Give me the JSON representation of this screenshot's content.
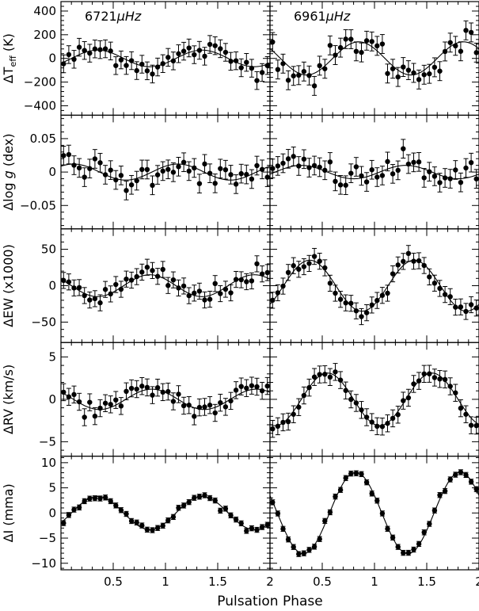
{
  "chart_data": {
    "type": "scatter",
    "xlabel": "Pulsation Phase",
    "columns": [
      {
        "label_num": "6721",
        "label_unit": "μHz"
      },
      {
        "label_num": "6961",
        "label_unit": "μHz"
      }
    ],
    "x_range": [
      0.0,
      2.0
    ],
    "x_ticks": [
      0.5,
      1,
      1.5,
      2
    ],
    "rows": [
      {
        "id": "teff",
        "ylabel_prefix": "ΔT",
        "ylabel_sub": "eff",
        "ylabel_suffix": " (K)",
        "ylim": [
          -480,
          480
        ],
        "yticks": [
          400,
          200,
          0,
          -200,
          -400
        ],
        "ytick_labels": [
          "400",
          "200",
          "0",
          "−200",
          "−400"
        ],
        "amplitude": [
          70,
          140
        ],
        "phase_peak": [
          0.35,
          0.85
        ],
        "error": [
          75,
          80
        ],
        "scatter": [
          45,
          65
        ]
      },
      {
        "id": "logg",
        "ylabel_prefix": "Δlog ",
        "ylabel_italic": "g",
        "ylabel_suffix": " (dex)",
        "ylim": [
          -0.085,
          0.085
        ],
        "yticks": [
          0.05,
          0,
          -0.05
        ],
        "ytick_labels": [
          "0.05",
          "0",
          "−0.05"
        ],
        "amplitude": [
          0.012,
          0.01
        ],
        "phase_peak": [
          0.12,
          0.3
        ],
        "error": [
          0.014,
          0.014
        ],
        "scatter": [
          0.01,
          0.01
        ]
      },
      {
        "id": "ew",
        "ylabel_prefix": "ΔEW (x1000)",
        "ylim": [
          -78,
          78
        ],
        "yticks": [
          50,
          0,
          -50
        ],
        "ytick_labels": [
          "50",
          "0",
          "−50"
        ],
        "amplitude": [
          15,
          35
        ],
        "phase_peak": [
          0.85,
          0.38
        ],
        "error": [
          11,
          11
        ],
        "scatter": [
          7,
          6
        ]
      },
      {
        "id": "rv",
        "ylabel_prefix": "ΔRV (km/s)",
        "ylim": [
          -6.7,
          6.7
        ],
        "yticks": [
          5,
          0,
          -5
        ],
        "ytick_labels": [
          "5",
          "0",
          "−5"
        ],
        "amplitude": [
          1.2,
          3.1
        ],
        "phase_peak": [
          0.87,
          0.55
        ],
        "error": [
          1.0,
          1.0
        ],
        "scatter": [
          0.6,
          0.4
        ]
      },
      {
        "id": "intensity",
        "ylabel_prefix": "ΔI (mma)",
        "ylim": [
          -11.3,
          11.3
        ],
        "yticks": [
          10,
          5,
          0,
          -5,
          -10
        ],
        "ytick_labels": [
          "10",
          "5",
          "0",
          "−5",
          "−10"
        ],
        "amplitude": [
          3.3,
          8.1
        ],
        "phase_peak": [
          0.35,
          0.82
        ],
        "error": [
          0.5,
          0.5
        ],
        "scatter": [
          0.3,
          0.3
        ]
      }
    ],
    "points_per_panel": 40
  }
}
